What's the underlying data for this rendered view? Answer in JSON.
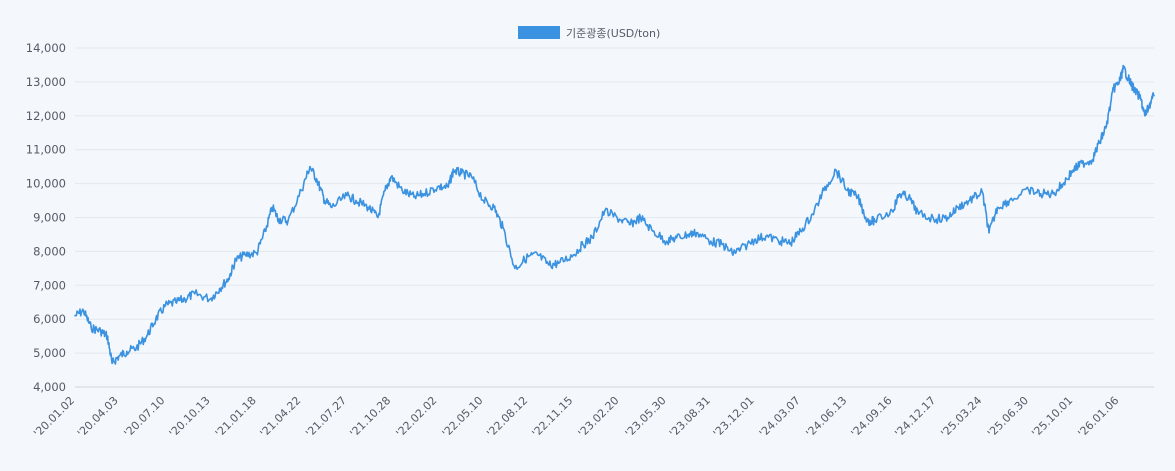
{
  "chart_data": {
    "type": "line",
    "series": [
      {
        "name": "기준광종(USD/ton)",
        "color": "#3a92e0",
        "points": [
          [
            "'20.01.02",
            6100
          ],
          [
            "'20.01.20",
            6250
          ],
          [
            "'20.02.05",
            5750
          ],
          [
            "'20.02.25",
            5650
          ],
          [
            "'20.03.10",
            5500
          ],
          [
            "'20.03.20",
            4700
          ],
          [
            "'20.04.03",
            4900
          ],
          [
            "'20.04.20",
            5050
          ],
          [
            "'20.05.10",
            5150
          ],
          [
            "'20.06.01",
            5500
          ],
          [
            "'20.06.20",
            6000
          ],
          [
            "'20.07.10",
            6400
          ],
          [
            "'20.08.01",
            6500
          ],
          [
            "'20.08.20",
            6600
          ],
          [
            "'20.09.10",
            6750
          ],
          [
            "'20.10.13",
            6600
          ],
          [
            "'20.11.01",
            6900
          ],
          [
            "'20.11.20",
            7200
          ],
          [
            "'20.12.05",
            7750
          ],
          [
            "'20.12.25",
            7900
          ],
          [
            "'21.01.18",
            7950
          ],
          [
            "'21.02.05",
            8600
          ],
          [
            "'21.02.20",
            9300
          ],
          [
            "'21.03.05",
            8950
          ],
          [
            "'21.03.25",
            8900
          ],
          [
            "'21.04.22",
            9800
          ],
          [
            "'21.05.10",
            10500
          ],
          [
            "'21.05.25",
            10100
          ],
          [
            "'21.06.10",
            9500
          ],
          [
            "'21.06.25",
            9300
          ],
          [
            "'21.07.27",
            9650
          ],
          [
            "'21.08.15",
            9500
          ],
          [
            "'21.09.10",
            9300
          ],
          [
            "'21.09.30",
            9000
          ],
          [
            "'21.10.15",
            9800
          ],
          [
            "'21.10.28",
            10200
          ],
          [
            "'21.11.20",
            9800
          ],
          [
            "'21.12.15",
            9600
          ],
          [
            "'22.01.05",
            9700
          ],
          [
            "'22.02.02",
            9900
          ],
          [
            "'22.02.25",
            9900
          ],
          [
            "'22.03.08",
            10400
          ],
          [
            "'22.03.25",
            10300
          ],
          [
            "'22.04.15",
            10200
          ],
          [
            "'22.05.10",
            9500
          ],
          [
            "'22.06.01",
            9300
          ],
          [
            "'22.06.20",
            8700
          ],
          [
            "'22.07.15",
            7500
          ],
          [
            "'22.08.12",
            7850
          ],
          [
            "'22.09.01",
            7900
          ],
          [
            "'22.09.25",
            7600
          ],
          [
            "'22.10.15",
            7650
          ],
          [
            "'22.11.15",
            7900
          ],
          [
            "'22.12.05",
            8200
          ],
          [
            "'22.12.25",
            8400
          ],
          [
            "'23.01.20",
            9200
          ],
          [
            "'23.02.20",
            8950
          ],
          [
            "'23.03.15",
            8800
          ],
          [
            "'23.04.05",
            9000
          ],
          [
            "'23.05.01",
            8600
          ],
          [
            "'23.05.30",
            8300
          ],
          [
            "'23.06.20",
            8400
          ],
          [
            "'23.07.15",
            8500
          ],
          [
            "'23.08.01",
            8550
          ],
          [
            "'23.08.31",
            8300
          ],
          [
            "'23.09.25",
            8200
          ],
          [
            "'23.10.15",
            7950
          ],
          [
            "'23.11.01",
            8050
          ],
          [
            "'23.12.01",
            8350
          ],
          [
            "'23.12.25",
            8450
          ],
          [
            "'24.01.25",
            8300
          ],
          [
            "'24.02.15",
            8250
          ],
          [
            "'24.03.07",
            8600
          ],
          [
            "'24.04.01",
            9100
          ],
          [
            "'24.04.25",
            9800
          ],
          [
            "'24.05.20",
            10400
          ],
          [
            "'24.06.13",
            9800
          ],
          [
            "'24.07.05",
            9600
          ],
          [
            "'24.07.25",
            8900
          ],
          [
            "'24.08.10",
            8900
          ],
          [
            "'24.09.16",
            9200
          ],
          [
            "'24.10.01",
            9700
          ],
          [
            "'24.10.20",
            9600
          ],
          [
            "'24.11.10",
            9100
          ],
          [
            "'24.12.17",
            8950
          ],
          [
            "'25.01.10",
            9000
          ],
          [
            "'25.02.01",
            9300
          ],
          [
            "'25.02.25",
            9500
          ],
          [
            "'25.03.24",
            9750
          ],
          [
            "'25.04.07",
            8550
          ],
          [
            "'25.04.25",
            9300
          ],
          [
            "'25.05.20",
            9500
          ],
          [
            "'25.06.30",
            9800
          ],
          [
            "'25.07.25",
            9700
          ],
          [
            "'25.08.20",
            9700
          ],
          [
            "'25.09.10",
            10000
          ],
          [
            "'25.10.01",
            10400
          ],
          [
            "'25.10.20",
            10600
          ],
          [
            "'25.11.10",
            10700
          ],
          [
            "'25.11.25",
            11200
          ],
          [
            "'25.12.10",
            11700
          ],
          [
            "'25.12.25",
            12800
          ],
          [
            "'26.01.06",
            13000
          ],
          [
            "'26.01.15",
            13400
          ],
          [
            "'26.01.25",
            13100
          ],
          [
            "'26.02.05",
            12800
          ],
          [
            "'26.02.20",
            12500
          ],
          [
            "'26.03.01",
            12000
          ],
          [
            "'26.03.10",
            12300
          ],
          [
            "'26.03.20",
            12600
          ]
        ]
      }
    ],
    "x_ticks": [
      "'20.01.02",
      "'20.04.03",
      "'20.07.10",
      "'20.10.13",
      "'21.01.18",
      "'21.04.22",
      "'21.07.27",
      "'21.10.28",
      "'22.02.02",
      "'22.05.10",
      "'22.08.12",
      "'22.11.15",
      "'23.02.20",
      "'23.05.30",
      "'23.08.31",
      "'23.12.01",
      "'24.03.07",
      "'24.06.13",
      "'24.09.16",
      "'24.12.17",
      "'25.03.24",
      "'25.06.30",
      "'25.10.01",
      "'26.01.06"
    ],
    "y_ticks": [
      "4,000",
      "5,000",
      "6,000",
      "7,000",
      "8,000",
      "9,000",
      "10,000",
      "11,000",
      "12,000",
      "13,000",
      "14,000"
    ],
    "y_tick_values": [
      4000,
      5000,
      6000,
      7000,
      8000,
      9000,
      10000,
      11000,
      12000,
      13000,
      14000
    ],
    "ylim": [
      4000,
      14000
    ],
    "grid": "horizontal",
    "legend_position": "top-center"
  }
}
